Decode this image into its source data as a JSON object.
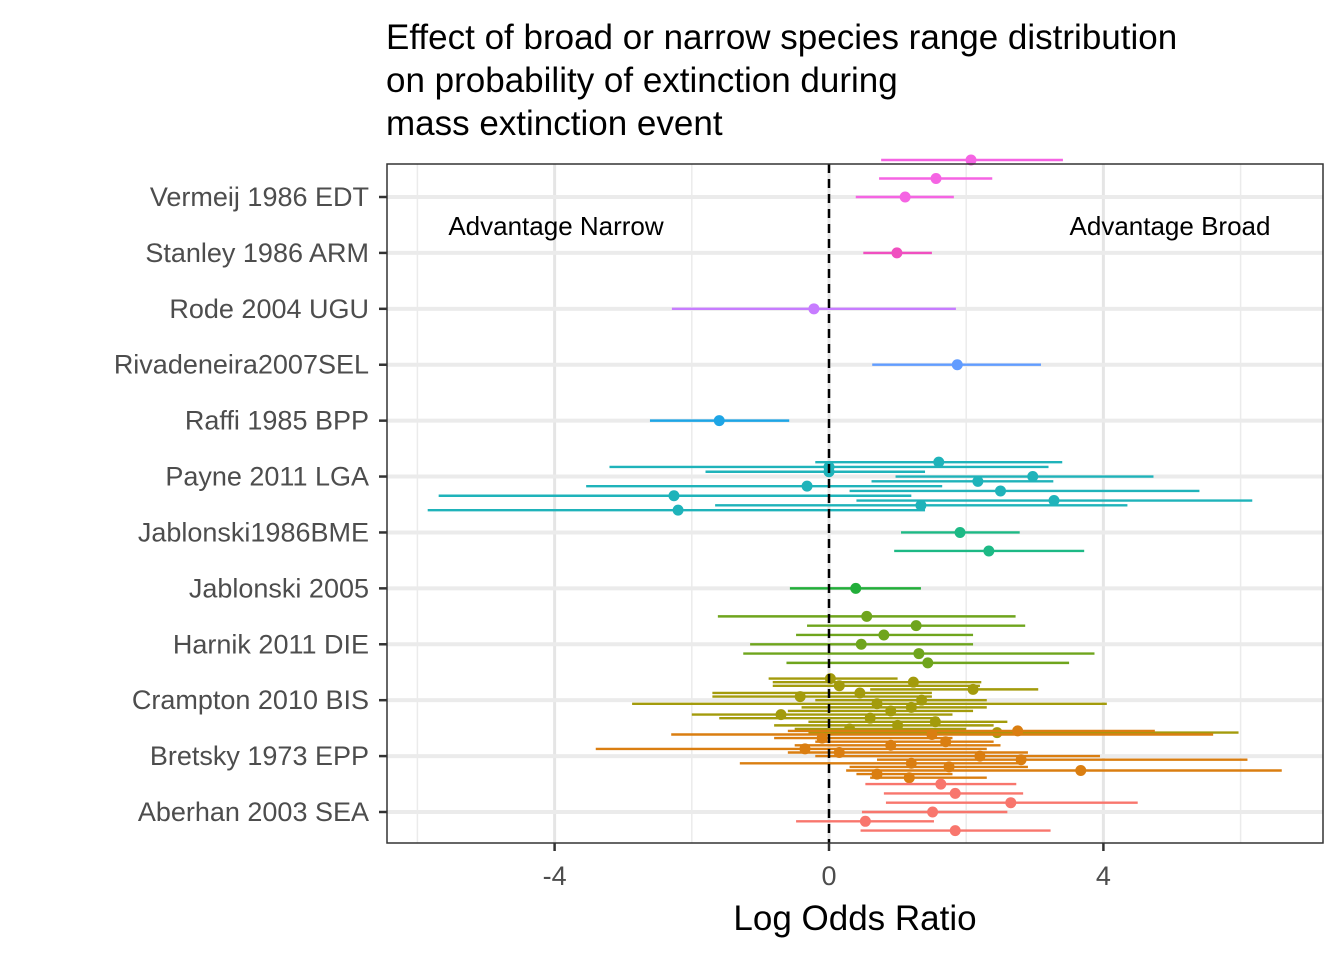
{
  "chart_data": {
    "type": "forest",
    "title": [
      "Effect of broad or narrow species range distribution",
      "on probability of extinction during",
      "mass extinction event"
    ],
    "xlabel": "Log Odds Ratio",
    "ylabel": "",
    "xlim": [
      -6.1,
      7.1
    ],
    "xticks": [
      -4,
      0,
      4
    ],
    "xtick_labels": [
      "-4",
      "0",
      "4"
    ],
    "grid": true,
    "reference_line": {
      "x": 0,
      "style": "dashed"
    },
    "annotations": [
      {
        "text": "Advantage Narrow",
        "x": -4.0
      },
      {
        "text": "Advantage Broad",
        "x": 5.0
      }
    ],
    "ytick_labels": [
      "Vermeij 1986 EDT",
      "Stanley 1986 ARM",
      "Rode 2004 UGU",
      "Rivadeneira2007SEL",
      "Raffi 1985 BPP",
      "Payne 2011 LGA",
      "Jablonski1986BME",
      "Jablonski 2005",
      "Harnik 2011 DIE",
      "Crampton 2010 BIS",
      "Bretsky 1973 EPP",
      "Aberhan 2003 SEA"
    ],
    "studies": [
      {
        "name": "Vermeij 1986 EDT",
        "color": "#F564E3",
        "tick_row": 2,
        "rows": [
          {
            "est": 2.07,
            "lo": 0.76,
            "hi": 3.41
          },
          {
            "est": 1.56,
            "lo": 0.73,
            "hi": 2.38
          },
          {
            "est": 1.11,
            "lo": 0.39,
            "hi": 1.82
          }
        ]
      },
      {
        "name": "Stanley 1986 ARM",
        "color": "#F04FC0",
        "tick_row": 0,
        "rows": [
          {
            "est": 0.99,
            "lo": 0.5,
            "hi": 1.5
          }
        ]
      },
      {
        "name": "Rode 2004 UGU",
        "color": "#C77CFF",
        "tick_row": 0,
        "rows": [
          {
            "est": -0.22,
            "lo": -2.29,
            "hi": 1.85
          }
        ]
      },
      {
        "name": "Rivadeneira2007SEL",
        "color": "#619CFF",
        "tick_row": 0,
        "rows": [
          {
            "est": 1.87,
            "lo": 0.63,
            "hi": 3.09
          }
        ]
      },
      {
        "name": "Raffi 1985 BPP",
        "color": "#1EA5E5",
        "tick_row": 0,
        "rows": [
          {
            "est": -1.6,
            "lo": -2.61,
            "hi": -0.58
          }
        ]
      },
      {
        "name": "Payne 2011 LGA",
        "color": "#1FB3BA",
        "tick_row": 3,
        "rows": [
          {
            "est": 1.6,
            "lo": -0.2,
            "hi": 3.4
          },
          {
            "est": 0.0,
            "lo": -3.2,
            "hi": 3.2
          },
          {
            "est": 0.0,
            "lo": -1.8,
            "hi": 1.4
          },
          {
            "est": 2.97,
            "lo": 0.97,
            "hi": 4.73
          },
          {
            "est": 2.17,
            "lo": 0.62,
            "hi": 3.27
          },
          {
            "est": -0.32,
            "lo": -3.54,
            "hi": 1.65
          },
          {
            "est": 2.5,
            "lo": 0.3,
            "hi": 5.4
          },
          {
            "est": -2.26,
            "lo": -5.69,
            "hi": 1.2
          },
          {
            "est": 3.28,
            "lo": 0.4,
            "hi": 6.17
          },
          {
            "est": 1.34,
            "lo": -1.66,
            "hi": 4.35
          },
          {
            "est": -2.2,
            "lo": -5.85,
            "hi": 1.4
          }
        ]
      },
      {
        "name": "Jablonski1986BME",
        "color": "#1DB985",
        "tick_row": 0,
        "rows": [
          {
            "est": 1.91,
            "lo": 1.05,
            "hi": 2.78
          },
          {
            "est": 2.33,
            "lo": 0.95,
            "hi": 3.72
          }
        ]
      },
      {
        "name": "Jablonski 2005",
        "color": "#22AE3A",
        "tick_row": 0,
        "rows": [
          {
            "est": 0.39,
            "lo": -0.57,
            "hi": 1.34
          }
        ]
      },
      {
        "name": "Harnik 2011 DIE",
        "color": "#6FA51D",
        "tick_row": 3,
        "rows": [
          {
            "est": 0.55,
            "lo": -1.62,
            "hi": 2.72
          },
          {
            "est": 1.27,
            "lo": -0.32,
            "hi": 2.86
          },
          {
            "est": 0.8,
            "lo": -0.48,
            "hi": 2.1
          },
          {
            "est": 0.47,
            "lo": -1.15,
            "hi": 2.1
          },
          {
            "est": 1.31,
            "lo": -1.25,
            "hi": 3.87
          },
          {
            "est": 1.44,
            "lo": -0.62,
            "hi": 3.5
          }
        ]
      },
      {
        "name": "Crampton 2010 BIS",
        "color": "#A39B0C",
        "tick_row": 6,
        "rows": [
          {
            "est": 0.02,
            "lo": -0.88,
            "hi": 1.0
          },
          {
            "est": 1.23,
            "lo": -0.82,
            "hi": 2.22
          },
          {
            "est": 0.15,
            "lo": -0.82,
            "hi": 2.2
          },
          {
            "est": 2.1,
            "lo": 0.6,
            "hi": 3.05
          },
          {
            "est": 0.45,
            "lo": -1.7,
            "hi": 1.5
          },
          {
            "est": -0.42,
            "lo": -1.7,
            "hi": 1.5
          },
          {
            "est": 1.35,
            "lo": -0.2,
            "hi": 2.3
          },
          {
            "est": 0.7,
            "lo": -2.87,
            "hi": 4.05
          },
          {
            "est": 1.2,
            "lo": -0.4,
            "hi": 2.3
          },
          {
            "est": 0.9,
            "lo": -0.6,
            "hi": 2.1
          },
          {
            "est": -0.7,
            "lo": -2.0,
            "hi": 1.8
          },
          {
            "est": 0.6,
            "lo": -1.6,
            "hi": 1.6
          },
          {
            "est": 1.55,
            "lo": -0.3,
            "hi": 2.6
          },
          {
            "est": 1.0,
            "lo": -0.8,
            "hi": 2.4
          },
          {
            "est": 0.3,
            "lo": -0.5,
            "hi": 2.0
          },
          {
            "est": 2.45,
            "lo": -0.3,
            "hi": 5.97
          }
        ]
      },
      {
        "name": "Bretsky 1973 EPP",
        "color": "#DA7E11",
        "tick_row": 7,
        "rows": [
          {
            "est": 2.75,
            "lo": -0.6,
            "hi": 4.75
          },
          {
            "est": 1.5,
            "lo": -2.3,
            "hi": 5.6
          },
          {
            "est": -0.1,
            "lo": -0.8,
            "hi": 1.8
          },
          {
            "est": 1.7,
            "lo": -0.2,
            "hi": 2.4
          },
          {
            "est": 0.9,
            "lo": -0.5,
            "hi": 2.5
          },
          {
            "est": -0.35,
            "lo": -3.4,
            "hi": 2.3
          },
          {
            "est": 0.15,
            "lo": -0.6,
            "hi": 2.9
          },
          {
            "est": 2.2,
            "lo": -0.2,
            "hi": 3.95
          },
          {
            "est": 2.8,
            "lo": 0.7,
            "hi": 6.1
          },
          {
            "est": 1.2,
            "lo": -1.3,
            "hi": 2.8
          },
          {
            "est": 1.75,
            "lo": 0.3,
            "hi": 2.9
          },
          {
            "est": 3.67,
            "lo": 0.25,
            "hi": 6.6
          },
          {
            "est": 0.7,
            "lo": 0.4,
            "hi": 1.8
          },
          {
            "est": 1.17,
            "lo": 0.6,
            "hi": 2.3
          }
        ]
      },
      {
        "name": "Aberhan 2003 SEA",
        "color": "#F8766D",
        "tick_row": 3,
        "rows": [
          {
            "est": 1.63,
            "lo": 0.53,
            "hi": 2.73
          },
          {
            "est": 1.84,
            "lo": 0.8,
            "hi": 2.83
          },
          {
            "est": 2.65,
            "lo": 0.83,
            "hi": 4.5
          },
          {
            "est": 1.51,
            "lo": 0.48,
            "hi": 2.6
          },
          {
            "est": 0.53,
            "lo": -0.48,
            "hi": 1.53
          },
          {
            "est": 1.84,
            "lo": 0.46,
            "hi": 3.23
          }
        ]
      }
    ]
  }
}
